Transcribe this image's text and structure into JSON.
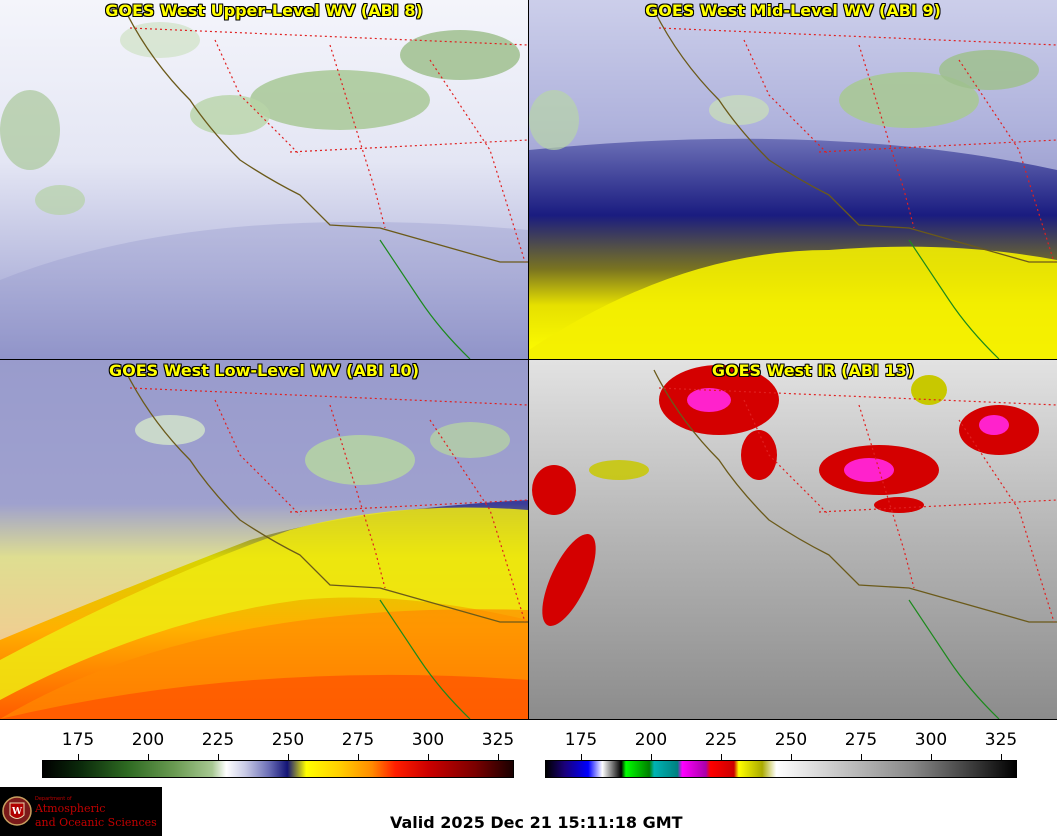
{
  "panels": [
    {
      "id": "upper",
      "title": "GOES West Upper-Level WV (ABI 8)"
    },
    {
      "id": "mid",
      "title": "GOES West Mid-Level WV (ABI 9)"
    },
    {
      "id": "low",
      "title": "GOES West Low-Level WV (ABI 10)"
    },
    {
      "id": "ir",
      "title": "GOES West IR (ABI 13)"
    }
  ],
  "colorbars": {
    "left": {
      "ticks": [
        "175",
        "200",
        "225",
        "250",
        "275",
        "300",
        "325"
      ]
    },
    "right": {
      "ticks": [
        "175",
        "200",
        "225",
        "250",
        "275",
        "300",
        "325"
      ]
    }
  },
  "logo": {
    "dept": "Department of",
    "line1": "Atmospheric",
    "line2": "and Oceanic Sciences",
    "seal_letter": "W"
  },
  "footer": {
    "valid": "Valid 2025 Dec 21 15:11:18 GMT"
  }
}
